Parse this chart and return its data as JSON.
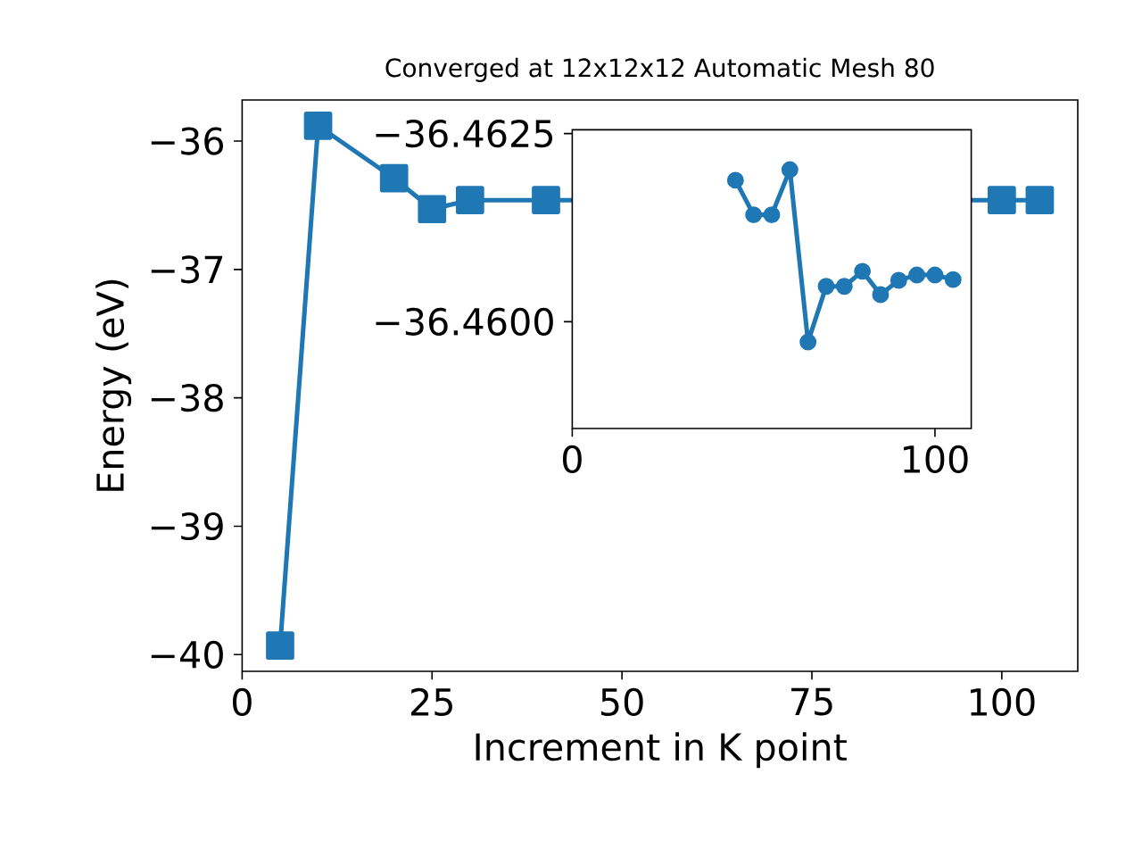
{
  "chart_data": [
    {
      "type": "line",
      "title": "Converged at 12x12x12 Automatic Mesh 80",
      "xlabel": "Increment in K point",
      "ylabel": "Energy (eV)",
      "x": [
        5,
        10,
        20,
        25,
        30,
        40,
        100,
        105
      ],
      "values": [
        -39.93,
        -35.88,
        -36.29,
        -36.53,
        -36.46,
        -36.46,
        -36.46,
        -36.46
      ],
      "color": "#1f77b4",
      "marker": "square",
      "xlim": [
        0,
        110
      ],
      "ylim": [
        -40.13,
        -35.68
      ],
      "xticks": [
        0,
        25,
        50,
        75,
        100
      ],
      "yticks": [
        {
          "value": -40,
          "label": "−40"
        },
        {
          "value": -39,
          "label": "−39"
        },
        {
          "value": -38,
          "label": "−38"
        },
        {
          "value": -37,
          "label": "−37"
        },
        {
          "value": -36,
          "label": "−36"
        }
      ]
    },
    {
      "type": "line",
      "x": [
        45,
        50,
        55,
        60,
        65,
        70,
        75,
        80,
        85,
        90,
        95,
        100,
        105
      ],
      "values": [
        -36.46188,
        -36.46142,
        -36.46142,
        -36.46202,
        -36.45973,
        -36.46047,
        -36.46047,
        -36.46067,
        -36.46036,
        -36.46055,
        -36.46062,
        -36.46062,
        -36.46056
      ],
      "color": "#1f77b4",
      "marker": "circle",
      "xlim": [
        0,
        110
      ],
      "ylim": [
        -36.45858,
        -36.46255
      ],
      "xticks": [
        0,
        100
      ],
      "yticks": [
        {
          "value": -36.4625,
          "label": "−36.4625"
        },
        {
          "value": -36.46,
          "label": "−36.4600"
        }
      ]
    }
  ]
}
